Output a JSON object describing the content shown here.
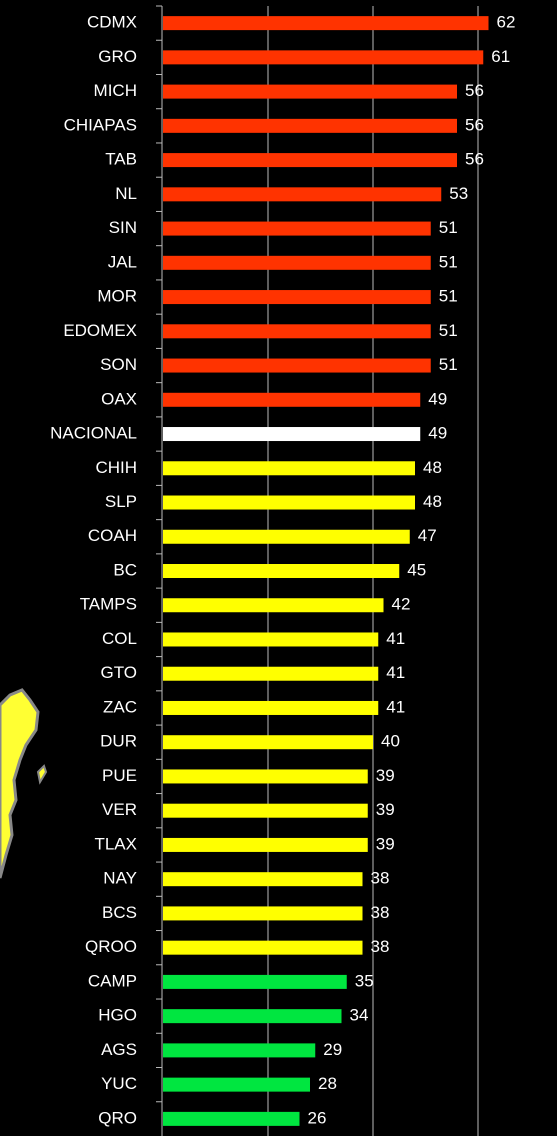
{
  "chart_data": {
    "type": "barh",
    "categories": [
      "CDMX",
      "GRO",
      "MICH",
      "CHIAPAS",
      "TAB",
      "NL",
      "SIN",
      "JAL",
      "MOR",
      "EDOMEX",
      "SON",
      "OAX",
      "NACIONAL",
      "CHIH",
      "SLP",
      "COAH",
      "BC",
      "TAMPS",
      "COL",
      "GTO",
      "ZAC",
      "DUR",
      "PUE",
      "VER",
      "TLAX",
      "NAY",
      "BCS",
      "QROO",
      "CAMP",
      "HGO",
      "AGS",
      "YUC",
      "QRO"
    ],
    "values": [
      62,
      61,
      56,
      56,
      56,
      53,
      51,
      51,
      51,
      51,
      51,
      49,
      49,
      48,
      48,
      47,
      45,
      42,
      41,
      41,
      41,
      40,
      39,
      39,
      39,
      38,
      38,
      38,
      35,
      34,
      29,
      28,
      26
    ],
    "colors": [
      "#ff3300",
      "#ff3300",
      "#ff3300",
      "#ff3300",
      "#ff3300",
      "#ff3300",
      "#ff3300",
      "#ff3300",
      "#ff3300",
      "#ff3300",
      "#ff3300",
      "#ff3300",
      "#ffffff",
      "#ffff00",
      "#ffff00",
      "#ffff00",
      "#ffff00",
      "#ffff00",
      "#ffff00",
      "#ffff00",
      "#ffff00",
      "#ffff00",
      "#ffff00",
      "#ffff00",
      "#ffff00",
      "#ffff00",
      "#ffff00",
      "#ffff00",
      "#00e640",
      "#00e640",
      "#00e640",
      "#00e640",
      "#00e640"
    ],
    "xlim": [
      0,
      75
    ],
    "xticks": [
      20,
      40,
      60
    ],
    "grid": true
  }
}
